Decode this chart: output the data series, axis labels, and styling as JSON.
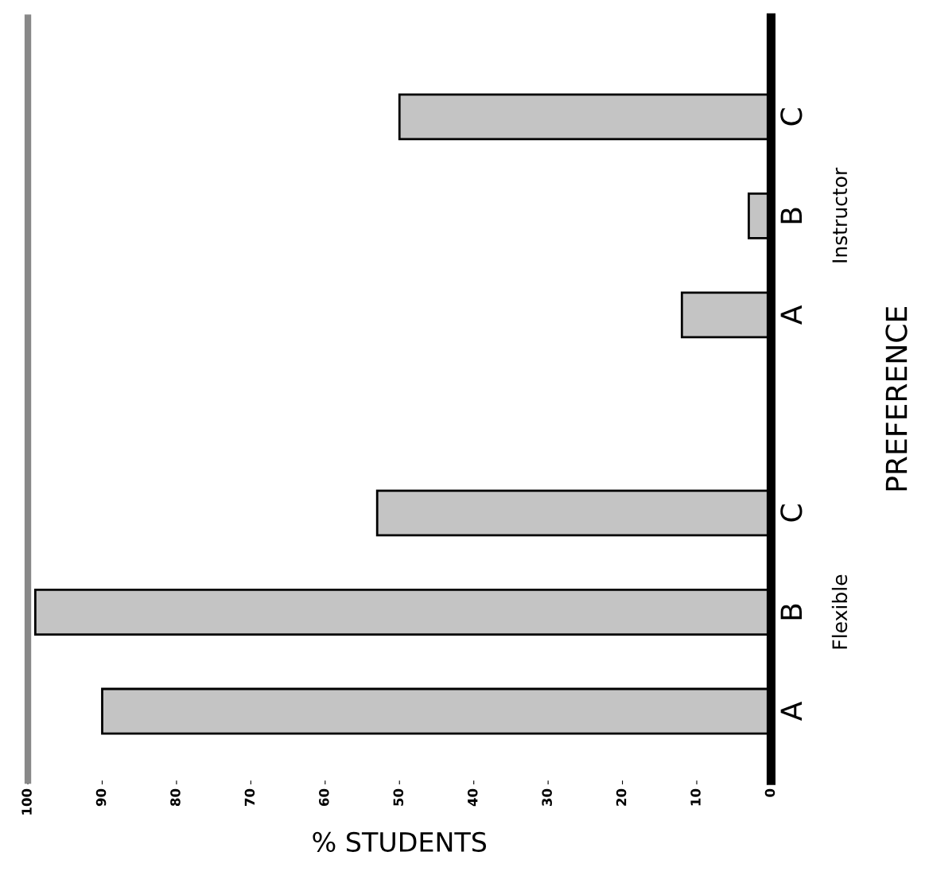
{
  "chart_data": {
    "type": "bar",
    "orientation": "horizontal",
    "ylabel": "PREFERENCE",
    "xlabel": "% STUDENTS",
    "categories": [
      "C",
      "B",
      "A",
      null,
      "C",
      "B",
      "A"
    ],
    "values": [
      50,
      3,
      12,
      null,
      53,
      99,
      90
    ],
    "color": "#c4c4c4",
    "xlim": [
      100,
      0
    ],
    "xticks": [
      0,
      10,
      20,
      30,
      40,
      50,
      60,
      70,
      80,
      90,
      100
    ],
    "annotations": [
      "Instructor",
      "Flexible"
    ],
    "grid": false,
    "legend": false
  }
}
